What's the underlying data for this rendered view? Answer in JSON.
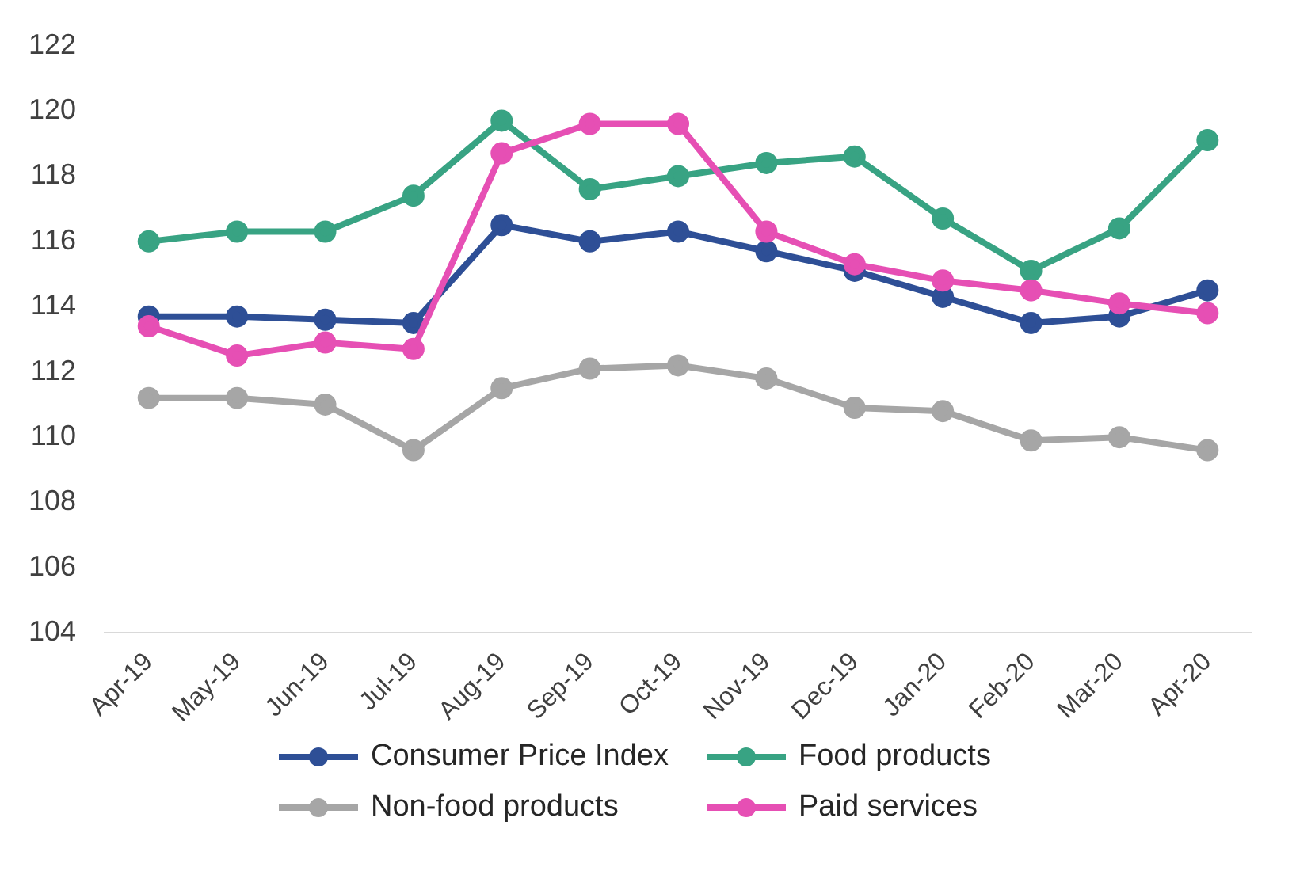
{
  "chart_data": {
    "type": "line",
    "categories": [
      "Apr-19",
      "May-19",
      "Jun-19",
      "Jul-19",
      "Aug-19",
      "Sep-19",
      "Oct-19",
      "Nov-19",
      "Dec-19",
      "Jan-20",
      "Feb-20",
      "Mar-20",
      "Apr-20"
    ],
    "series": [
      {
        "name": "Consumer Price Index",
        "color": "#2e4f96",
        "values": [
          113.7,
          113.7,
          113.6,
          113.5,
          116.5,
          116.0,
          116.3,
          115.7,
          115.1,
          114.3,
          113.5,
          113.7,
          114.5
        ]
      },
      {
        "name": "Food products",
        "color": "#38a383",
        "values": [
          116.0,
          116.3,
          116.3,
          117.4,
          119.7,
          117.6,
          118.0,
          118.4,
          118.6,
          116.7,
          115.1,
          116.4,
          119.1
        ]
      },
      {
        "name": "Non-food products",
        "color": "#a6a6a6",
        "values": [
          111.2,
          111.2,
          111.0,
          109.6,
          111.5,
          112.1,
          112.2,
          111.8,
          110.9,
          110.8,
          109.9,
          110.0,
          109.6
        ]
      },
      {
        "name": "Paid services",
        "color": "#e64fb4",
        "values": [
          113.4,
          112.5,
          112.9,
          112.7,
          118.7,
          119.6,
          119.6,
          116.3,
          115.3,
          114.8,
          114.5,
          114.1,
          113.8
        ]
      }
    ],
    "ylim": [
      104,
      122
    ],
    "yticks": [
      104,
      106,
      108,
      110,
      112,
      114,
      116,
      118,
      120,
      122
    ],
    "grid": false,
    "legend": "bottom",
    "marker": "circle",
    "line_style": "solid"
  }
}
